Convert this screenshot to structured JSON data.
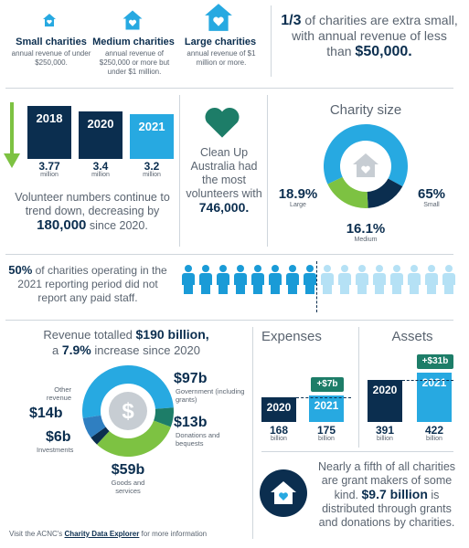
{
  "sizes": [
    {
      "title": "Small charities",
      "desc": "annual revenue of under $250,000."
    },
    {
      "title": "Medium charities",
      "desc": "annual revenue of $250,000 or more but under $1 million."
    },
    {
      "title": "Large charities",
      "desc": "annual revenue of $1 million or more."
    }
  ],
  "fraction_stat": {
    "bold": "1/3",
    "text": " of charities are extra small, with annual revenue of less than ",
    "amount": "$50,000."
  },
  "volunteers": {
    "bars": [
      {
        "year": "2018",
        "value": "3.77",
        "unit": "million",
        "num": 3.77
      },
      {
        "year": "2020",
        "value": "3.4",
        "unit": "million",
        "num": 3.4
      },
      {
        "year": "2021",
        "value": "3.2",
        "unit": "million",
        "num": 3.2
      }
    ],
    "text_a": "Volunteer numbers continue to trend down, decreasing by ",
    "amount": "180,000",
    "text_b": " since 2020."
  },
  "clean_up": {
    "text": "Clean Up Australia had the most volunteers with ",
    "amount": "746,000."
  },
  "charity_size": {
    "title": "Charity size",
    "segments": [
      {
        "label": "Small",
        "value": "65%",
        "pct": 65,
        "color": "#27a9e1"
      },
      {
        "label": "Medium",
        "value": "16.1%",
        "pct": 16.1,
        "color": "#0b2e4f"
      },
      {
        "label": "Large",
        "value": "18.9%",
        "pct": 18.9,
        "color": "#7dc242"
      }
    ]
  },
  "staff": {
    "bold": "50%",
    "text": " of charities operating in the 2021 reporting period did not report any paid staff.",
    "filled": 8,
    "total": 16,
    "dark_color": "#1a9bd7",
    "light_color": "#b5e1f5"
  },
  "revenue": {
    "line1_a": "Revenue totalled ",
    "line1_b": "$190 billion,",
    "line2_a": "a ",
    "line2_b": "7.9%",
    "line2_c": " increase since 2020",
    "segments": [
      {
        "amount": "$97b",
        "label": "Government (including grants)",
        "num": 97,
        "color": "#27a9e1"
      },
      {
        "amount": "$13b",
        "label": "Donations and bequests",
        "num": 13,
        "color": "#1d7d68"
      },
      {
        "amount": "$59b",
        "label": "Goods and services",
        "num": 59,
        "color": "#7dc242"
      },
      {
        "amount": "$6b",
        "label": "Investments",
        "num": 6,
        "color": "#0b2e4f"
      },
      {
        "amount": "$14b",
        "label": "Other revenue",
        "num": 14,
        "color": "#2f7fc1"
      }
    ]
  },
  "expenses": {
    "title": "Expenses",
    "change": "+$7b",
    "bars": [
      {
        "year": "2020",
        "value": "168",
        "unit": "billion",
        "num": 168
      },
      {
        "year": "2021",
        "value": "175",
        "unit": "billion",
        "num": 175
      }
    ]
  },
  "assets": {
    "title": "Assets",
    "change": "+$31b",
    "bars": [
      {
        "year": "2020",
        "value": "391",
        "unit": "billion",
        "num": 391
      },
      {
        "year": "2021",
        "value": "422",
        "unit": "billion",
        "num": 422
      }
    ]
  },
  "grant_makers": {
    "text_a": "Nearly a fifth of all charities are grant makers of some kind. ",
    "amount": "$9.7 billion",
    "text_b": " is distributed through grants and donations by charities."
  },
  "footer": {
    "text": "Visit the ACNC's ",
    "link": "Charity Data Explorer",
    "text_b": " for more information"
  },
  "colors": {
    "navy": "#0b2e4f",
    "blue": "#27a9e1",
    "green": "#7dc242",
    "teal": "#1d7d68"
  }
}
